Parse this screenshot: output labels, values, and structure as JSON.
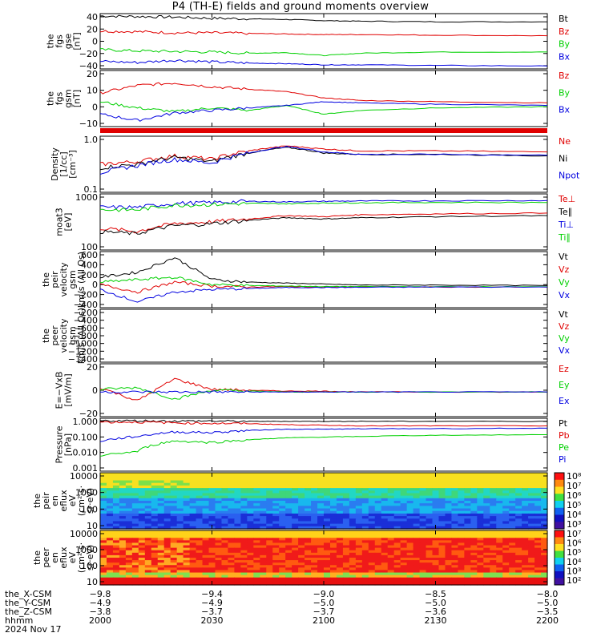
{
  "title": "P4 (TH-E) fields and ground moments overview",
  "colors": {
    "black": "#000000",
    "red": "#e00000",
    "green": "#00d000",
    "blue": "#0000e0",
    "cyan": "#00c8ff"
  },
  "chart_data": [
    {
      "type": "line",
      "panel": "fgs_gse",
      "ylabel": [
        "the",
        "fgs",
        "gse",
        "[nT]"
      ],
      "yticks": [
        "40",
        "20",
        "0",
        "−20",
        "−40"
      ],
      "ylim": [
        -45,
        50
      ],
      "x": [
        2000,
        2010,
        2020,
        2030,
        2040,
        2050,
        2100,
        2110,
        2130,
        2200
      ],
      "series": [
        {
          "name": "Bt",
          "color": "#000000",
          "values": [
            46,
            45,
            44,
            42,
            41,
            40,
            38,
            37,
            36,
            36
          ]
        },
        {
          "name": "Bz",
          "color": "#e00000",
          "values": [
            20,
            19,
            17,
            17,
            16,
            15,
            14,
            14,
            13,
            12
          ]
        },
        {
          "name": "By",
          "color": "#00d000",
          "values": [
            -12,
            -14,
            -15,
            -16,
            -18,
            -17,
            -22,
            -18,
            -16,
            -16
          ]
        },
        {
          "name": "Bx",
          "color": "#0000e0",
          "values": [
            -32,
            -34,
            -30,
            -33,
            -35,
            -36,
            -38,
            -38,
            -39,
            -40
          ]
        }
      ]
    },
    {
      "type": "line",
      "panel": "fgs_gsm",
      "ylabel": [
        "the",
        "fgs",
        "gsm",
        "[nT]"
      ],
      "yticks": [
        "20",
        "10",
        "0",
        "−10"
      ],
      "ylim": [
        -15,
        30
      ],
      "x": [
        2000,
        2010,
        2020,
        2030,
        2040,
        2050,
        2100,
        2110,
        2130,
        2200
      ],
      "series": [
        {
          "name": "Bz",
          "color": "#e00000",
          "values": [
            12,
            18,
            20,
            17,
            15,
            13,
            8,
            6,
            5,
            4
          ]
        },
        {
          "name": "By",
          "color": "#00d000",
          "values": [
            5,
            0,
            -3,
            0,
            -2,
            2,
            -5,
            -2,
            0,
            1
          ]
        },
        {
          "name": "Bx",
          "color": "#0000e0",
          "values": [
            -5,
            -10,
            -4,
            -2,
            0,
            2,
            5,
            4,
            3,
            2
          ]
        }
      ]
    },
    {
      "type": "line",
      "panel": "density",
      "ylabel": [
        "Density",
        "[1/cc]",
        "[cm⁻³]"
      ],
      "yticks": [
        "1.0",
        "0.1"
      ],
      "ylim": [
        0.02,
        2
      ],
      "log": true,
      "x": [
        2000,
        2010,
        2020,
        2030,
        2040,
        2050,
        2100,
        2110,
        2130,
        2200
      ],
      "series": [
        {
          "name": "Ne",
          "color": "#e00000",
          "values": [
            0.2,
            0.25,
            0.4,
            0.3,
            0.6,
            0.9,
            0.7,
            0.6,
            0.6,
            0.55
          ]
        },
        {
          "name": "Ni",
          "color": "#000000",
          "values": [
            0.15,
            0.2,
            0.35,
            0.25,
            0.5,
            0.8,
            0.5,
            0.45,
            0.45,
            0.4
          ]
        },
        {
          "name": "Npot",
          "color": "#0000e0",
          "values": [
            0.1,
            0.18,
            0.3,
            0.22,
            0.5,
            0.85,
            0.55,
            0.45,
            0.45,
            0.42
          ]
        }
      ]
    },
    {
      "type": "line",
      "panel": "temperature",
      "ylabel": [
        "moat3",
        "[eV]"
      ],
      "yticks": [
        "1000",
        "100"
      ],
      "ylim": [
        60,
        8000
      ],
      "log": true,
      "x": [
        2000,
        2010,
        2020,
        2030,
        2040,
        2050,
        2100,
        2110,
        2130,
        2200
      ],
      "series": [
        {
          "name": "Te⊥",
          "color": "#e00000",
          "values": [
            400,
            300,
            600,
            700,
            900,
            1200,
            1100,
            1300,
            1400,
            1500
          ]
        },
        {
          "name": "Te∥",
          "color": "#000000",
          "values": [
            300,
            250,
            500,
            600,
            800,
            1000,
            900,
            1000,
            1100,
            1200
          ]
        },
        {
          "name": "Ti⊥",
          "color": "#0000e0",
          "values": [
            2500,
            2500,
            3500,
            3800,
            4200,
            4000,
            4200,
            4300,
            4400,
            4500
          ]
        },
        {
          "name": "Ti∥",
          "color": "#00d000",
          "values": [
            2000,
            2000,
            3000,
            3200,
            3500,
            3400,
            3600,
            3700,
            3800,
            3800
          ]
        }
      ]
    },
    {
      "type": "line",
      "panel": "peir_velocity",
      "ylabel": [
        "the",
        "peir",
        "velocity",
        "gsm",
        "km/s (All Qs)"
      ],
      "yticks": [
        "600",
        "400",
        "200",
        "0",
        "−200",
        "−400"
      ],
      "ylim": [
        -420,
        720
      ],
      "x": [
        2000,
        2010,
        2020,
        2030,
        2040,
        2050,
        2100,
        2110,
        2130,
        2200
      ],
      "series": [
        {
          "name": "Vt",
          "color": "#000000",
          "values": [
            200,
            300,
            600,
            150,
            100,
            80,
            60,
            40,
            40,
            30
          ]
        },
        {
          "name": "Vz",
          "color": "#e00000",
          "values": [
            50,
            -100,
            100,
            20,
            0,
            10,
            0,
            5,
            0,
            0
          ]
        },
        {
          "name": "Vy",
          "color": "#00d000",
          "values": [
            100,
            150,
            200,
            50,
            30,
            20,
            10,
            10,
            5,
            5
          ]
        },
        {
          "name": "Vx",
          "color": "#0000e0",
          "values": [
            -50,
            -300,
            -100,
            -50,
            -30,
            -10,
            -10,
            -5,
            0,
            0
          ]
        }
      ]
    },
    {
      "type": "line",
      "panel": "peer_velocity",
      "ylabel": [
        "the",
        "peer",
        "velocity",
        "gsm",
        "km/s (All Qs)"
      ],
      "yticks": [
        "−200",
        "−400",
        "−600",
        "−800",
        "−1000",
        "−1200",
        "−1400"
      ],
      "ylim": [
        -1450,
        -150
      ],
      "x": [],
      "series": [
        {
          "name": "Vt",
          "color": "#000000",
          "values": []
        },
        {
          "name": "Vz",
          "color": "#e00000",
          "values": []
        },
        {
          "name": "Vy",
          "color": "#00d000",
          "values": []
        },
        {
          "name": "Vx",
          "color": "#0000e0",
          "values": []
        }
      ]
    },
    {
      "type": "line",
      "panel": "efield",
      "ylabel": [
        "E=−VxB",
        "[mV/m]"
      ],
      "yticks": [
        "20",
        "0",
        "−20"
      ],
      "ylim": [
        -28,
        32
      ],
      "x": [
        2000,
        2010,
        2020,
        2030,
        2040,
        2050,
        2100,
        2110,
        2130,
        2200
      ],
      "series": [
        {
          "name": "Ez",
          "color": "#e00000",
          "values": [
            5,
            -10,
            15,
            3,
            2,
            1,
            1,
            0,
            0,
            0
          ]
        },
        {
          "name": "Ey",
          "color": "#00d000",
          "values": [
            3,
            5,
            -8,
            2,
            1,
            0,
            0,
            0,
            0,
            0
          ]
        },
        {
          "name": "Ex",
          "color": "#0000e0",
          "values": [
            0,
            0,
            0,
            0,
            0,
            0,
            0,
            0,
            0,
            0
          ]
        }
      ]
    },
    {
      "type": "line",
      "panel": "pressure",
      "ylabel": [
        "Pressure",
        "[nPa]"
      ],
      "yticks": [
        "1.000",
        "0.100",
        "0.010",
        "0.001"
      ],
      "ylim": [
        0.0005,
        1.6
      ],
      "log": true,
      "x": [
        2000,
        2010,
        2020,
        2030,
        2040,
        2050,
        2100,
        2110,
        2130,
        2200
      ],
      "series": [
        {
          "name": "Pt",
          "color": "#000000",
          "values": [
            1.1,
            1.1,
            1.05,
            1.05,
            1.0,
            1.0,
            1.0,
            1.0,
            1.0,
            1.0
          ]
        },
        {
          "name": "Pb",
          "color": "#e00000",
          "values": [
            0.9,
            0.9,
            0.8,
            0.75,
            0.7,
            0.6,
            0.55,
            0.5,
            0.5,
            0.5
          ]
        },
        {
          "name": "Pe",
          "color": "#00d000",
          "values": [
            0.005,
            0.01,
            0.05,
            0.04,
            0.06,
            0.08,
            0.09,
            0.1,
            0.12,
            0.13
          ]
        },
        {
          "name": "Pi",
          "color": "#0000e0",
          "values": [
            0.05,
            0.1,
            0.2,
            0.18,
            0.25,
            0.3,
            0.3,
            0.32,
            0.33,
            0.35
          ]
        }
      ]
    },
    {
      "type": "heatmap",
      "panel": "peir_spectrogram",
      "ylabel": [
        "the",
        "peir",
        "en",
        "eflux",
        "eV",
        "(cm²·s·",
        "sr·eV)"
      ],
      "yticks": [
        "10000",
        "1000",
        "100",
        "10"
      ],
      "colorbar": {
        "ticks": [
          "10⁸",
          "10⁷",
          "10⁶",
          "10⁵",
          "10⁴",
          "10³"
        ],
        "label": "eV/(cm²·s·sr·eV) (All Qs)"
      }
    },
    {
      "type": "heatmap",
      "panel": "peer_spectrogram",
      "ylabel": [
        "the",
        "peer",
        "en",
        "eflux",
        "eV",
        "(cm²·s·",
        "sr·eV)"
      ],
      "yticks": [
        "10000",
        "1000",
        "100",
        "10"
      ],
      "colorbar": {
        "ticks": [
          "10⁷",
          "10⁶",
          "10⁵",
          "10⁴",
          "10³",
          "10²"
        ],
        "label": "eV/(cm²·s·sr·eV) (All Qs)"
      }
    }
  ],
  "footer": {
    "row_labels": [
      "thе_X-CSM",
      "the_Y-CSM",
      "the_Z-CSM",
      "hhmm",
      "2024 Nov 17"
    ],
    "columns": [
      {
        "x": "−9.8",
        "y": "−4.9",
        "z": "−3.8",
        "t": "2000"
      },
      {
        "x": "−9.4",
        "y": "−4.9",
        "z": "−3.7",
        "t": "2030"
      },
      {
        "x": "−9.0",
        "y": "−5.0",
        "z": "−3.7",
        "t": "2100"
      },
      {
        "x": "−8.5",
        "y": "−5.0",
        "z": "−3.6",
        "t": "2130"
      },
      {
        "x": "−8.0",
        "y": "−5.0",
        "z": "−3.5",
        "t": "2200"
      }
    ]
  }
}
